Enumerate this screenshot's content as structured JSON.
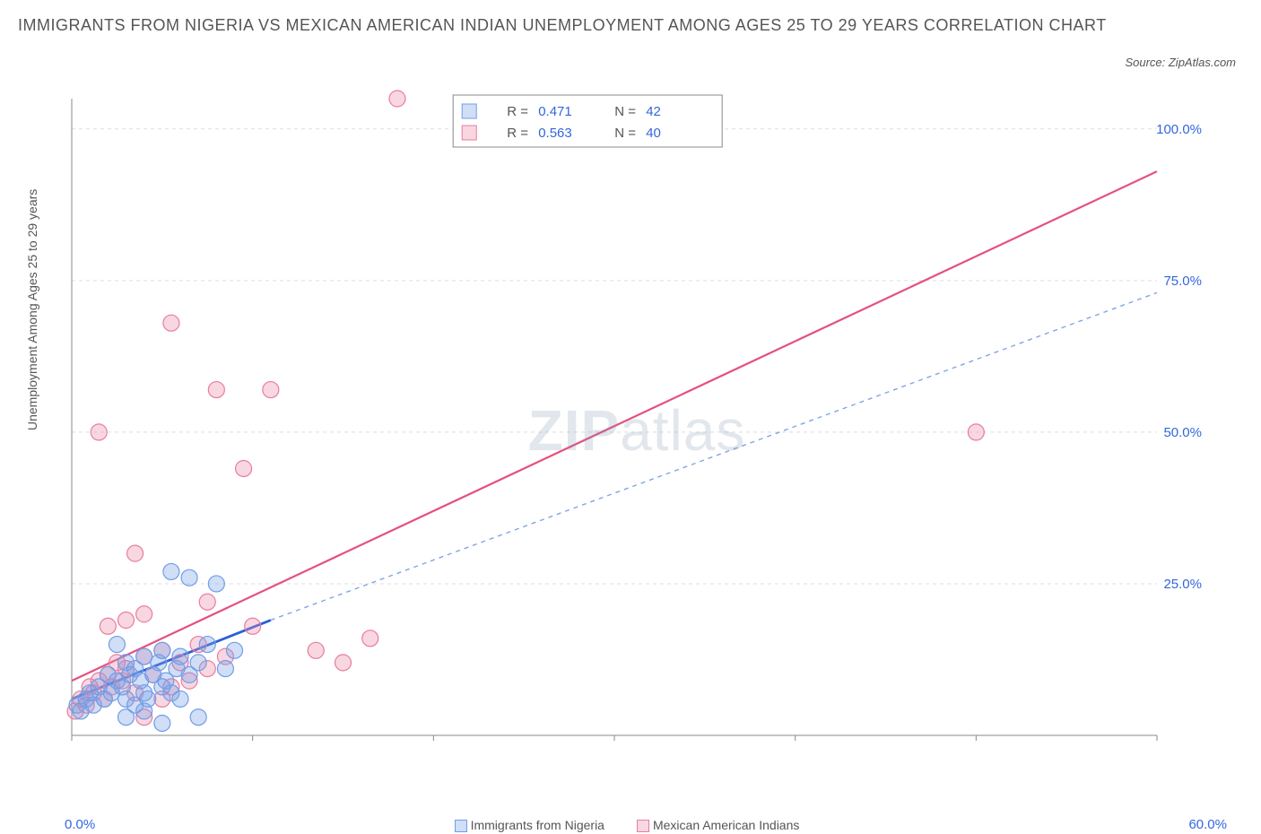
{
  "title": "IMMIGRANTS FROM NIGERIA VS MEXICAN AMERICAN INDIAN UNEMPLOYMENT AMONG AGES 25 TO 29 YEARS CORRELATION CHART",
  "source_label": "Source: ZipAtlas.com",
  "y_axis_label": "Unemployment Among Ages 25 to 29 years",
  "watermark": {
    "bold": "ZIP",
    "light": "atlas"
  },
  "colors": {
    "text_muted": "#555555",
    "link_blue": "#3366dd",
    "grid": "#dddddd",
    "axis": "#888888",
    "series1_stroke": "#6f9de8",
    "series1_fill": "rgba(120,160,230,0.35)",
    "series2_stroke": "#e87ca0",
    "series2_fill": "rgba(235,140,170,0.35)",
    "trend1": "#2a5fd8",
    "trend1_dash": "#7fa5e8",
    "trend2": "#e5517f"
  },
  "chart": {
    "type": "scatter",
    "xlim": [
      0,
      60
    ],
    "ylim": [
      0,
      105
    ],
    "x_ticks": [
      0,
      10,
      20,
      30,
      40,
      50,
      60
    ],
    "y_ticks": [
      25,
      50,
      75,
      100
    ],
    "x_tick_labels_left": "0.0%",
    "x_tick_labels_right": "60.0%",
    "y_tick_labels": [
      "25.0%",
      "50.0%",
      "75.0%",
      "100.0%"
    ],
    "marker_radius": 9,
    "marker_stroke_width": 1.2,
    "grid_dash": "4 4",
    "trend_width": 2.2,
    "series": [
      {
        "name": "Immigrants from Nigeria",
        "color_key": "series1",
        "trend": {
          "x1": 0,
          "y1": 6,
          "x2": 11,
          "y2": 19,
          "solid": true
        },
        "trend_ext": {
          "x1": 11,
          "y1": 19,
          "x2": 60,
          "y2": 73
        },
        "points": [
          [
            0.3,
            5
          ],
          [
            0.5,
            4
          ],
          [
            0.8,
            6
          ],
          [
            1.0,
            7
          ],
          [
            1.2,
            5
          ],
          [
            1.5,
            8
          ],
          [
            1.8,
            6
          ],
          [
            2.0,
            10
          ],
          [
            2.2,
            7
          ],
          [
            2.5,
            9
          ],
          [
            2.5,
            15
          ],
          [
            2.8,
            8
          ],
          [
            3.0,
            6
          ],
          [
            3.0,
            12
          ],
          [
            3.2,
            10
          ],
          [
            3.5,
            11
          ],
          [
            3.5,
            5
          ],
          [
            3.8,
            9
          ],
          [
            4.0,
            13
          ],
          [
            4.0,
            7
          ],
          [
            4.2,
            6
          ],
          [
            4.5,
            10
          ],
          [
            4.8,
            12
          ],
          [
            5.0,
            14
          ],
          [
            5.0,
            8
          ],
          [
            5.2,
            9
          ],
          [
            5.5,
            7
          ],
          [
            5.5,
            27
          ],
          [
            5.8,
            11
          ],
          [
            6.0,
            13
          ],
          [
            6.0,
            6
          ],
          [
            6.5,
            10
          ],
          [
            6.5,
            26
          ],
          [
            7.0,
            12
          ],
          [
            7.0,
            3
          ],
          [
            7.5,
            15
          ],
          [
            8.0,
            25
          ],
          [
            8.5,
            11
          ],
          [
            9.0,
            14
          ],
          [
            5.0,
            2
          ],
          [
            4.0,
            4
          ],
          [
            3.0,
            3
          ]
        ]
      },
      {
        "name": "Mexican American Indians",
        "color_key": "series2",
        "trend": {
          "x1": 0,
          "y1": 9,
          "x2": 60,
          "y2": 93,
          "solid": true
        },
        "points": [
          [
            0.2,
            4
          ],
          [
            0.5,
            6
          ],
          [
            0.8,
            5
          ],
          [
            1.0,
            8
          ],
          [
            1.2,
            7
          ],
          [
            1.5,
            9
          ],
          [
            1.5,
            50
          ],
          [
            1.8,
            6
          ],
          [
            2.0,
            10
          ],
          [
            2.0,
            18
          ],
          [
            2.2,
            8
          ],
          [
            2.5,
            12
          ],
          [
            2.8,
            9
          ],
          [
            3.0,
            11
          ],
          [
            3.0,
            19
          ],
          [
            3.5,
            7
          ],
          [
            3.5,
            30
          ],
          [
            4.0,
            13
          ],
          [
            4.0,
            20
          ],
          [
            4.5,
            10
          ],
          [
            5.0,
            14
          ],
          [
            5.0,
            6
          ],
          [
            5.5,
            8
          ],
          [
            5.5,
            68
          ],
          [
            6.0,
            12
          ],
          [
            6.5,
            9
          ],
          [
            7.0,
            15
          ],
          [
            7.5,
            11
          ],
          [
            7.5,
            22
          ],
          [
            8.0,
            57
          ],
          [
            8.5,
            13
          ],
          [
            9.5,
            44
          ],
          [
            10.0,
            18
          ],
          [
            11.0,
            57
          ],
          [
            13.5,
            14
          ],
          [
            15.0,
            12
          ],
          [
            16.5,
            16
          ],
          [
            18.0,
            105
          ],
          [
            50.0,
            50
          ],
          [
            4.0,
            3
          ]
        ]
      }
    ]
  },
  "stats_box": {
    "rows": [
      {
        "color_key": "series1",
        "R_label": "R =",
        "R": "0.471",
        "N_label": "N =",
        "N": "42"
      },
      {
        "color_key": "series2",
        "R_label": "R =",
        "R": "0.563",
        "N_label": "N =",
        "N": "40"
      }
    ]
  },
  "bottom_legend": {
    "items": [
      {
        "color_key": "series1",
        "label": "Immigrants from Nigeria"
      },
      {
        "color_key": "series2",
        "label": "Mexican American Indians"
      }
    ]
  }
}
